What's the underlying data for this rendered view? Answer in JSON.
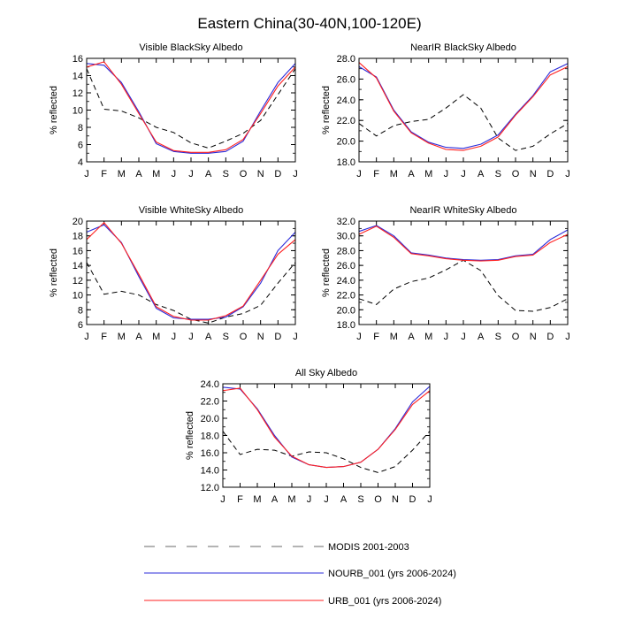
{
  "figure_title": "Eastern China(30-40N,100-120E)",
  "colors": {
    "modis": "#000000",
    "nourb": "#2b2bd9",
    "urb": "#ff2020"
  },
  "legend": {
    "items": [
      {
        "label": "MODIS 2001-2003",
        "color": "#888888",
        "dashed": true
      },
      {
        "label": "NOURB_001 (yrs 2006-2024)",
        "color": "#2b2bd9",
        "dashed": false
      },
      {
        "label": "URB_001 (yrs 2006-2024)",
        "color": "#ff2020",
        "dashed": false
      }
    ]
  },
  "chart_data": [
    {
      "type": "line",
      "title": "Visible BlackSky Albedo",
      "ylabel": "% reflected",
      "xlabel": "",
      "categories": [
        "J",
        "F",
        "M",
        "A",
        "M",
        "J",
        "J",
        "A",
        "S",
        "O",
        "N",
        "D",
        "J"
      ],
      "ylim": [
        4,
        16
      ],
      "yticks": [
        "4",
        "6",
        "8",
        "10",
        "12",
        "14",
        "16"
      ],
      "series": [
        {
          "name": "MODIS 2001-2003",
          "values": [
            14.8,
            10.1,
            9.9,
            9.1,
            8.0,
            7.4,
            6.2,
            5.6,
            6.4,
            7.3,
            8.8,
            11.8,
            14.8
          ]
        },
        {
          "name": "NOURB_001 (yrs 2006-2024)",
          "values": [
            15.4,
            15.2,
            13.2,
            9.8,
            6.1,
            5.2,
            5.0,
            5.0,
            5.2,
            6.4,
            9.9,
            13.2,
            15.4
          ]
        },
        {
          "name": "URB_001 (yrs 2006-2024)",
          "values": [
            15.0,
            15.6,
            13.0,
            9.6,
            6.3,
            5.3,
            5.1,
            5.1,
            5.4,
            6.6,
            9.6,
            12.8,
            15.0
          ]
        }
      ]
    },
    {
      "type": "line",
      "title": "NearIR BlackSky Albedo",
      "ylabel": "% reflected",
      "xlabel": "",
      "categories": [
        "J",
        "F",
        "M",
        "A",
        "M",
        "J",
        "J",
        "A",
        "S",
        "O",
        "N",
        "D",
        "J"
      ],
      "ylim": [
        18,
        28
      ],
      "yticks": [
        "18.0",
        "20.0",
        "22.0",
        "24.0",
        "26.0",
        "28.0"
      ],
      "series": [
        {
          "name": "MODIS 2001-2003",
          "values": [
            21.7,
            20.5,
            21.5,
            21.9,
            22.1,
            23.2,
            24.5,
            23.2,
            20.3,
            19.1,
            19.5,
            20.7,
            21.7
          ]
        },
        {
          "name": "NOURB_001 (yrs 2006-2024)",
          "values": [
            27.2,
            26.2,
            23.0,
            20.9,
            19.9,
            19.4,
            19.3,
            19.7,
            20.6,
            22.6,
            24.4,
            26.7,
            27.5
          ]
        },
        {
          "name": "URB_001 (yrs 2006-2024)",
          "values": [
            27.6,
            26.1,
            22.9,
            20.8,
            19.8,
            19.2,
            19.1,
            19.5,
            20.4,
            22.5,
            24.3,
            26.4,
            27.2
          ]
        }
      ]
    },
    {
      "type": "line",
      "title": "Visible WhiteSky Albedo",
      "ylabel": "% reflected",
      "xlabel": "",
      "categories": [
        "J",
        "F",
        "M",
        "A",
        "M",
        "J",
        "J",
        "A",
        "S",
        "O",
        "N",
        "D",
        "J"
      ],
      "ylim": [
        6,
        20
      ],
      "yticks": [
        "6",
        "8",
        "10",
        "12",
        "14",
        "16",
        "18",
        "20"
      ],
      "series": [
        {
          "name": "MODIS 2001-2003",
          "values": [
            14.4,
            10.1,
            10.5,
            10.0,
            8.7,
            7.9,
            6.7,
            6.2,
            7.0,
            7.5,
            8.6,
            11.6,
            14.4
          ]
        },
        {
          "name": "NOURB_001 (yrs 2006-2024)",
          "values": [
            18.5,
            19.5,
            17.1,
            12.5,
            8.2,
            6.9,
            6.7,
            6.7,
            7.0,
            8.4,
            11.6,
            16.0,
            18.5
          ]
        },
        {
          "name": "URB_001 (yrs 2006-2024)",
          "values": [
            17.5,
            19.8,
            17.0,
            12.8,
            8.4,
            7.1,
            6.6,
            6.6,
            7.2,
            8.5,
            12.0,
            15.5,
            17.5
          ]
        }
      ]
    },
    {
      "type": "line",
      "title": "NearIR WhiteSky Albedo",
      "ylabel": "% reflected",
      "xlabel": "",
      "categories": [
        "J",
        "F",
        "M",
        "A",
        "M",
        "J",
        "J",
        "A",
        "S",
        "O",
        "N",
        "D",
        "J"
      ],
      "ylim": [
        18,
        32
      ],
      "yticks": [
        "18.0",
        "20.0",
        "22.0",
        "24.0",
        "26.0",
        "28.0",
        "30.0",
        "32.0"
      ],
      "series": [
        {
          "name": "MODIS 2001-2003",
          "values": [
            21.5,
            20.7,
            22.8,
            23.8,
            24.3,
            25.4,
            26.7,
            25.3,
            21.9,
            19.9,
            19.8,
            20.3,
            21.5
          ]
        },
        {
          "name": "NOURB_001 (yrs 2006-2024)",
          "values": [
            30.6,
            31.4,
            30.0,
            27.7,
            27.4,
            27.0,
            26.8,
            26.7,
            26.8,
            27.3,
            27.5,
            29.5,
            30.8
          ]
        },
        {
          "name": "URB_001 (yrs 2006-2024)",
          "values": [
            30.2,
            31.3,
            29.8,
            27.6,
            27.3,
            26.9,
            26.7,
            26.6,
            26.7,
            27.2,
            27.4,
            29.1,
            30.2
          ]
        }
      ]
    },
    {
      "type": "line",
      "title": "All Sky Albedo",
      "ylabel": "% reflected",
      "xlabel": "",
      "categories": [
        "J",
        "F",
        "M",
        "A",
        "M",
        "J",
        "J",
        "A",
        "S",
        "O",
        "N",
        "D",
        "J"
      ],
      "ylim": [
        12,
        24
      ],
      "yticks": [
        "12.0",
        "14.0",
        "16.0",
        "18.0",
        "20.0",
        "22.0",
        "24.0"
      ],
      "series": [
        {
          "name": "MODIS 2001-2003",
          "values": [
            18.5,
            15.8,
            16.4,
            16.3,
            15.6,
            16.1,
            16.0,
            15.3,
            14.3,
            13.7,
            14.4,
            16.3,
            18.5
          ]
        },
        {
          "name": "NOURB_001 (yrs 2006-2024)",
          "values": [
            23.6,
            23.4,
            21.1,
            18.0,
            15.5,
            14.6,
            14.3,
            14.4,
            14.9,
            16.4,
            18.8,
            21.9,
            23.7
          ]
        },
        {
          "name": "URB_001 (yrs 2006-2024)",
          "values": [
            23.2,
            23.5,
            21.0,
            17.8,
            15.6,
            14.6,
            14.3,
            14.4,
            14.9,
            16.4,
            18.7,
            21.6,
            23.2
          ]
        }
      ]
    }
  ]
}
